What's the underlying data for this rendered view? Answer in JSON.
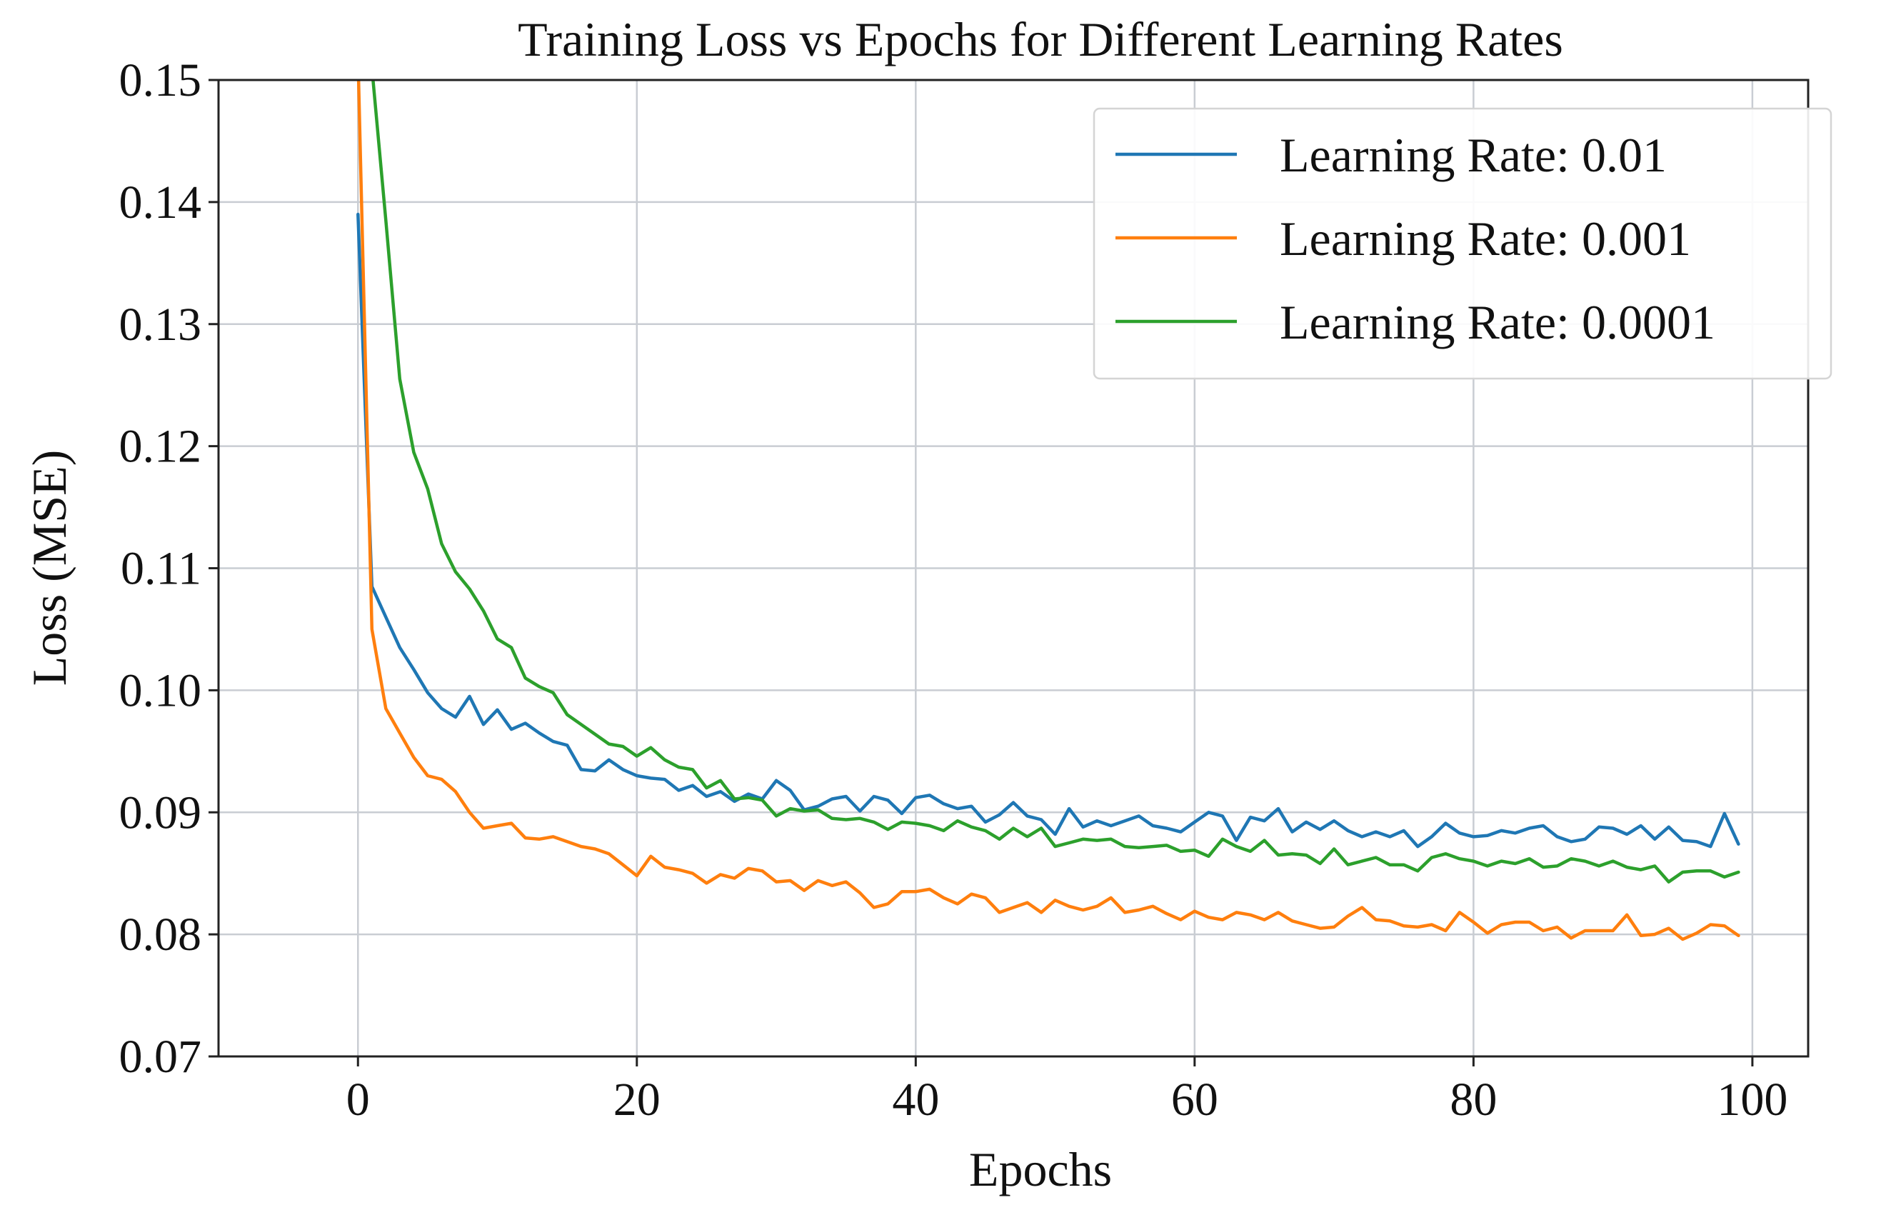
{
  "chart_data": {
    "type": "line",
    "title": "Training Loss vs Epochs for Different Learning Rates",
    "xlabel": "Epochs",
    "ylabel": "Loss (MSE)",
    "xlim": [
      -10,
      104
    ],
    "ylim": [
      0.07,
      0.15
    ],
    "xticks": [
      0,
      20,
      40,
      60,
      80,
      100
    ],
    "xtick_labels": [
      "0",
      "20",
      "40",
      "60",
      "80",
      "100"
    ],
    "yticks": [
      0.07,
      0.08,
      0.09,
      0.1,
      0.11,
      0.12,
      0.13,
      0.14,
      0.15
    ],
    "ytick_labels": [
      "0.07",
      "0.08",
      "0.09",
      "0.10",
      "0.11",
      "0.12",
      "0.13",
      "0.14",
      "0.15"
    ],
    "grid": true,
    "legend_position": "top-right",
    "series": [
      {
        "name": "Learning Rate: 0.01",
        "color": "#1f77b4",
        "x": [
          0,
          1,
          2,
          3,
          4,
          5,
          6,
          7,
          8,
          9,
          10,
          11,
          12,
          13,
          14,
          15,
          16,
          17,
          18,
          19,
          20,
          21,
          22,
          23,
          24,
          25,
          26,
          27,
          28,
          29,
          30,
          31,
          32,
          33,
          34,
          35,
          36,
          37,
          38,
          39,
          40,
          41,
          42,
          43,
          44,
          45,
          46,
          47,
          48,
          49,
          50,
          51,
          52,
          53,
          54,
          55,
          56,
          57,
          58,
          59,
          60,
          61,
          62,
          63,
          64,
          65,
          66,
          67,
          68,
          69,
          70,
          71,
          72,
          73,
          74,
          75,
          76,
          77,
          78,
          79,
          80,
          81,
          82,
          83,
          84,
          85,
          86,
          87,
          88,
          89,
          90,
          91,
          92,
          93,
          94,
          95,
          96,
          97,
          98,
          99
        ],
        "values": [
          0.139,
          0.1085,
          0.106,
          0.1035,
          0.1017,
          0.0998,
          0.0985,
          0.0978,
          0.0995,
          0.0972,
          0.0984,
          0.0968,
          0.0973,
          0.0965,
          0.0958,
          0.0955,
          0.0935,
          0.0934,
          0.0943,
          0.0935,
          0.093,
          0.0928,
          0.0927,
          0.0918,
          0.0922,
          0.0913,
          0.0917,
          0.0909,
          0.0915,
          0.0911,
          0.0926,
          0.0918,
          0.0902,
          0.0905,
          0.0911,
          0.0913,
          0.0901,
          0.0913,
          0.091,
          0.0899,
          0.0912,
          0.0914,
          0.0907,
          0.0903,
          0.0905,
          0.0892,
          0.0898,
          0.0908,
          0.0897,
          0.0894,
          0.0882,
          0.0903,
          0.0888,
          0.0893,
          0.0889,
          0.0893,
          0.0897,
          0.0889,
          0.0887,
          0.0884,
          0.0892,
          0.09,
          0.0897,
          0.0877,
          0.0896,
          0.0893,
          0.0903,
          0.0884,
          0.0892,
          0.0886,
          0.0893,
          0.0885,
          0.088,
          0.0884,
          0.088,
          0.0885,
          0.0872,
          0.088,
          0.0891,
          0.0883,
          0.088,
          0.0881,
          0.0885,
          0.0883,
          0.0887,
          0.0889,
          0.088,
          0.0876,
          0.0878,
          0.0888,
          0.0887,
          0.0882,
          0.0889,
          0.0878,
          0.0888,
          0.0877,
          0.0876,
          0.0872,
          0.0899,
          0.0874
        ]
      },
      {
        "name": "Learning Rate: 0.001",
        "color": "#ff7f0e",
        "x": [
          0,
          1,
          2,
          3,
          4,
          5,
          6,
          7,
          8,
          9,
          10,
          11,
          12,
          13,
          14,
          15,
          16,
          17,
          18,
          19,
          20,
          21,
          22,
          23,
          24,
          25,
          26,
          27,
          28,
          29,
          30,
          31,
          32,
          33,
          34,
          35,
          36,
          37,
          38,
          39,
          40,
          41,
          42,
          43,
          44,
          45,
          46,
          47,
          48,
          49,
          50,
          51,
          52,
          53,
          54,
          55,
          56,
          57,
          58,
          59,
          60,
          61,
          62,
          63,
          64,
          65,
          66,
          67,
          68,
          69,
          70,
          71,
          72,
          73,
          74,
          75,
          76,
          77,
          78,
          79,
          80,
          81,
          82,
          83,
          84,
          85,
          86,
          87,
          88,
          89,
          90,
          91,
          92,
          93,
          94,
          95,
          96,
          97,
          98,
          99
        ],
        "values": [
          0.152,
          0.105,
          0.0985,
          0.0965,
          0.0945,
          0.093,
          0.0927,
          0.0917,
          0.09,
          0.0887,
          0.0889,
          0.0891,
          0.0879,
          0.0878,
          0.088,
          0.0876,
          0.0872,
          0.087,
          0.0866,
          0.0857,
          0.0848,
          0.0864,
          0.0855,
          0.0853,
          0.085,
          0.0842,
          0.0849,
          0.0846,
          0.0854,
          0.0852,
          0.0843,
          0.0844,
          0.0836,
          0.0844,
          0.084,
          0.0843,
          0.0834,
          0.0822,
          0.0825,
          0.0835,
          0.0835,
          0.0837,
          0.083,
          0.0825,
          0.0833,
          0.083,
          0.0818,
          0.0822,
          0.0826,
          0.0818,
          0.0828,
          0.0823,
          0.082,
          0.0823,
          0.083,
          0.0818,
          0.082,
          0.0823,
          0.0817,
          0.0812,
          0.0819,
          0.0814,
          0.0812,
          0.0818,
          0.0816,
          0.0812,
          0.0818,
          0.0811,
          0.0808,
          0.0805,
          0.0806,
          0.0815,
          0.0822,
          0.0812,
          0.0811,
          0.0807,
          0.0806,
          0.0808,
          0.0803,
          0.0818,
          0.081,
          0.0801,
          0.0808,
          0.081,
          0.081,
          0.0803,
          0.0806,
          0.0797,
          0.0803,
          0.0803,
          0.0803,
          0.0816,
          0.0799,
          0.08,
          0.0805,
          0.0796,
          0.0801,
          0.0808,
          0.0807,
          0.0799
        ]
      },
      {
        "name": "Learning Rate: 0.0001",
        "color": "#2ca02c",
        "x": [
          1,
          2,
          3,
          4,
          5,
          6,
          7,
          8,
          9,
          10,
          11,
          12,
          13,
          14,
          15,
          16,
          17,
          18,
          19,
          20,
          21,
          22,
          23,
          24,
          25,
          26,
          27,
          28,
          29,
          30,
          31,
          32,
          33,
          34,
          35,
          36,
          37,
          38,
          39,
          40,
          41,
          42,
          43,
          44,
          45,
          46,
          47,
          48,
          49,
          50,
          51,
          52,
          53,
          54,
          55,
          56,
          57,
          58,
          59,
          60,
          61,
          62,
          63,
          64,
          65,
          66,
          67,
          68,
          69,
          70,
          71,
          72,
          73,
          74,
          75,
          76,
          77,
          78,
          79,
          80,
          81,
          82,
          83,
          84,
          85,
          86,
          87,
          88,
          89,
          90,
          91,
          92,
          93,
          94,
          95,
          96,
          97,
          98,
          99
        ],
        "values": [
          0.151,
          0.1385,
          0.1255,
          0.1195,
          0.1165,
          0.112,
          0.1097,
          0.1083,
          0.1065,
          0.1042,
          0.1035,
          0.101,
          0.1003,
          0.0998,
          0.098,
          0.0972,
          0.0964,
          0.0956,
          0.0954,
          0.0946,
          0.0953,
          0.0943,
          0.0937,
          0.0935,
          0.092,
          0.0926,
          0.0911,
          0.0912,
          0.091,
          0.0897,
          0.0903,
          0.0901,
          0.0902,
          0.0895,
          0.0894,
          0.0895,
          0.0892,
          0.0886,
          0.0892,
          0.0891,
          0.0889,
          0.0885,
          0.0893,
          0.0888,
          0.0885,
          0.0878,
          0.0887,
          0.088,
          0.0887,
          0.0872,
          0.0875,
          0.0878,
          0.0877,
          0.0878,
          0.0872,
          0.0871,
          0.0872,
          0.0873,
          0.0868,
          0.0869,
          0.0864,
          0.0878,
          0.0872,
          0.0868,
          0.0877,
          0.0865,
          0.0866,
          0.0865,
          0.0858,
          0.087,
          0.0857,
          0.086,
          0.0863,
          0.0857,
          0.0857,
          0.0852,
          0.0863,
          0.0866,
          0.0862,
          0.086,
          0.0856,
          0.086,
          0.0858,
          0.0862,
          0.0855,
          0.0856,
          0.0862,
          0.086,
          0.0856,
          0.086,
          0.0855,
          0.0853,
          0.0856,
          0.0843,
          0.0851,
          0.0852,
          0.0852,
          0.0847,
          0.0851
        ]
      }
    ]
  }
}
